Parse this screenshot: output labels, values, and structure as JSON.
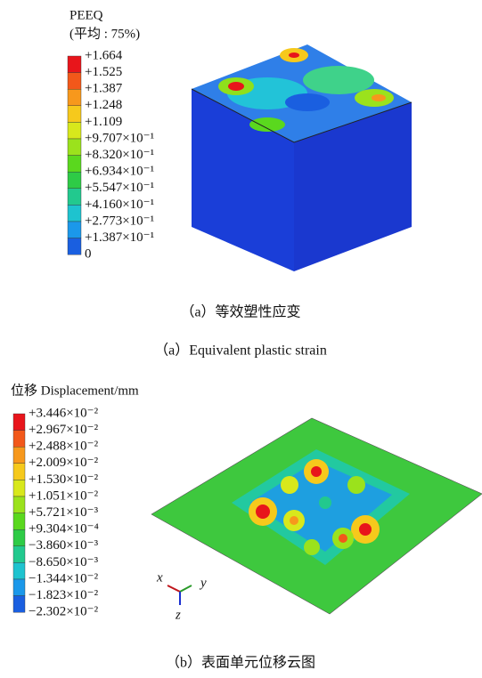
{
  "figure_a": {
    "legend_title": "PEEQ",
    "legend_subtitle": "(平均 : 75%)",
    "legend_labels": [
      "+1.664",
      "+1.525",
      "+1.387",
      "+1.248",
      "+1.109",
      "+9.707×10⁻¹",
      "+8.320×10⁻¹",
      "+6.934×10⁻¹",
      "+5.547×10⁻¹",
      "+4.160×10⁻¹",
      "+2.773×10⁻¹",
      "+1.387×10⁻¹",
      "0"
    ],
    "colors": [
      "#e8151b",
      "#f2581a",
      "#f7981c",
      "#f6c91c",
      "#d8e81c",
      "#9be21c",
      "#5ad81e",
      "#2ecb46",
      "#22c98e",
      "#1ec3cf",
      "#1b98ea",
      "#1a5fe0",
      "#1a2fd0"
    ],
    "caption_cn": "（a）等效塑性应变",
    "caption_en": "（a）Equivalent plastic strain"
  },
  "figure_b": {
    "legend_title": "位移 Displacement/mm",
    "legend_labels": [
      "+3.446×10⁻²",
      "+2.967×10⁻²",
      "+2.488×10⁻²",
      "+2.009×10⁻²",
      "+1.530×10⁻²",
      "+1.051×10⁻²",
      "+5.721×10⁻³",
      "+9.304×10⁻⁴",
      "−3.860×10⁻³",
      "−8.650×10⁻³",
      "−1.344×10⁻²",
      "−1.823×10⁻²",
      "−2.302×10⁻²"
    ],
    "colors": [
      "#e8151b",
      "#f2581a",
      "#f7981c",
      "#f6c91c",
      "#d8e81c",
      "#9be21c",
      "#5ad81e",
      "#2ecb46",
      "#22c98e",
      "#1ec3cf",
      "#1b98ea",
      "#1a5fe0",
      "#1a2fd0"
    ],
    "axis_x": "x",
    "axis_y": "y",
    "axis_z": "z",
    "caption": "（b）表面单元位移云图"
  }
}
